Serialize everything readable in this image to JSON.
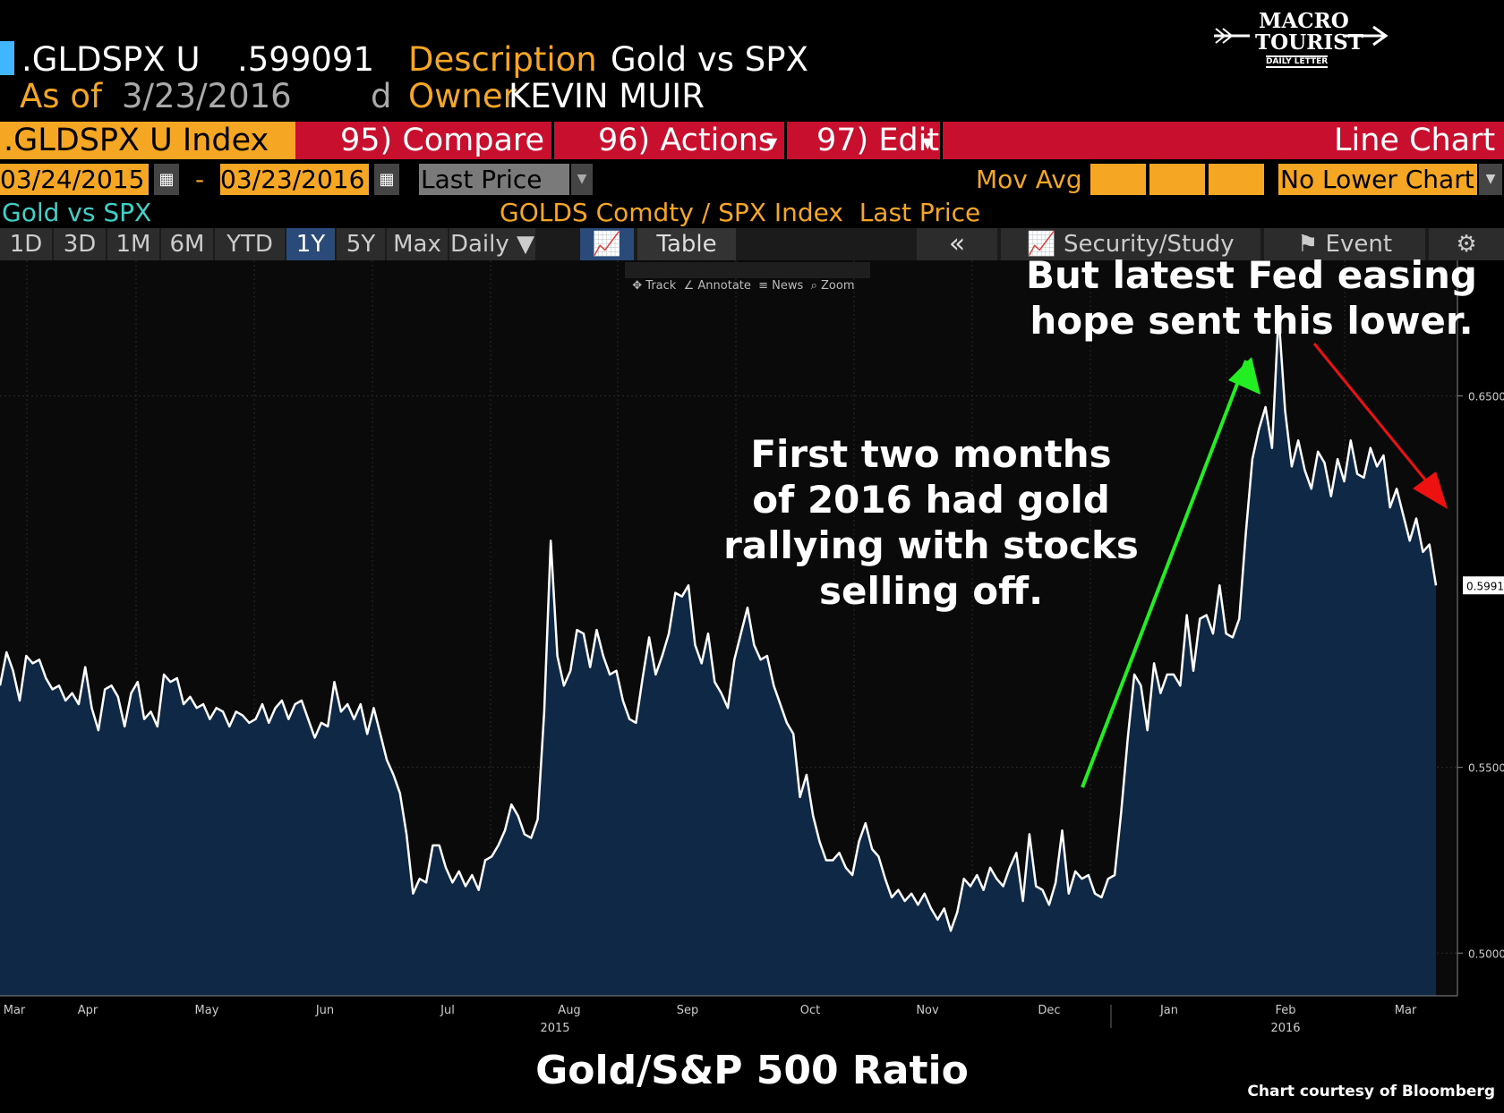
{
  "header": {
    "ticker": ".GLDSPX U",
    "value": ".599091",
    "desc_label": "Description",
    "desc_value": "Gold vs SPX",
    "asof_label": "As of",
    "asof_date": "3/23/2016",
    "d_label": "d",
    "owner_label": "Owner",
    "owner_value": "KEVIN MUIR"
  },
  "logo": {
    "line1": "MACRO",
    "line2": "TOURIST",
    "sub": "DAILY LETTER"
  },
  "toolbar": {
    "index_label": ".GLDSPX U Index",
    "compare": "95) Compare",
    "actions": "96) Actions",
    "edit": "97) Edit",
    "chart_type": "Line Chart"
  },
  "daterow": {
    "start": "03/24/2015",
    "dash": "-",
    "end": "03/23/2016",
    "field": "Last Price",
    "movavg": "Mov Avg",
    "lower": "No Lower Chart"
  },
  "titlerow": {
    "left": "Gold vs SPX",
    "center": "GOLDS Comdty / SPX Index  Last Price"
  },
  "tabs": [
    "1D",
    "3D",
    "1M",
    "6M",
    "YTD",
    "1Y",
    "5Y",
    "Max",
    "Daily"
  ],
  "tabs_active": "1Y",
  "table_tab": "Table",
  "collapse": "«",
  "security_study": "Security/Study",
  "event": "Event",
  "mini_tools": [
    "Track",
    "Annotate",
    "News",
    "Zoom"
  ],
  "annotations": {
    "top": "But latest Fed easing\nhope sent this lower.",
    "middle": "First two months\nof 2016 had gold\nrallying with stocks\nselling off."
  },
  "footer": {
    "title": "Gold/S&P 500 Ratio",
    "credit": "Chart courtesy of Bloomberg"
  },
  "colors": {
    "orange": "#f5a623",
    "red": "#c8102e",
    "fill": "#0f2845",
    "line": "#ffffff",
    "up_arrow": "#22ee22",
    "down_arrow": "#ee1111"
  },
  "chart_data": {
    "type": "area",
    "title": "Gold/S&P 500 Ratio",
    "subtitle": "GOLDS Comdty / SPX Index  Last Price",
    "xlabel": "",
    "ylabel": "",
    "ylim": [
      0.4885,
      0.6865
    ],
    "yticks": [
      "0.5000",
      "0.5500",
      "0.6500"
    ],
    "last_value_label": "0.5991",
    "x_ticks": [
      "Mar",
      "Apr",
      "May",
      "Jun",
      "Jul",
      "Aug",
      "Sep",
      "Oct",
      "Nov",
      "Dec",
      "Jan",
      "Feb",
      "Mar"
    ],
    "x_year_labels": [
      "2015",
      "2016"
    ],
    "series": [
      {
        "name": "Gold vs SPX",
        "values": [
          0.572,
          0.581,
          0.576,
          0.568,
          0.58,
          0.578,
          0.579,
          0.574,
          0.571,
          0.572,
          0.568,
          0.57,
          0.567,
          0.577,
          0.566,
          0.56,
          0.571,
          0.572,
          0.569,
          0.561,
          0.57,
          0.573,
          0.563,
          0.565,
          0.561,
          0.575,
          0.573,
          0.574,
          0.567,
          0.569,
          0.566,
          0.567,
          0.563,
          0.566,
          0.565,
          0.561,
          0.565,
          0.564,
          0.562,
          0.563,
          0.567,
          0.562,
          0.566,
          0.568,
          0.563,
          0.567,
          0.568,
          0.563,
          0.558,
          0.562,
          0.561,
          0.573,
          0.565,
          0.567,
          0.563,
          0.567,
          0.559,
          0.566,
          0.559,
          0.552,
          0.548,
          0.543,
          0.532,
          0.516,
          0.52,
          0.519,
          0.529,
          0.529,
          0.523,
          0.519,
          0.522,
          0.518,
          0.521,
          0.517,
          0.525,
          0.526,
          0.529,
          0.533,
          0.54,
          0.537,
          0.532,
          0.531,
          0.536,
          0.565,
          0.611,
          0.58,
          0.572,
          0.576,
          0.587,
          0.586,
          0.577,
          0.587,
          0.58,
          0.575,
          0.576,
          0.568,
          0.563,
          0.562,
          0.574,
          0.585,
          0.575,
          0.58,
          0.586,
          0.597,
          0.596,
          0.599,
          0.583,
          0.578,
          0.586,
          0.573,
          0.57,
          0.566,
          0.579,
          0.586,
          0.593,
          0.583,
          0.579,
          0.58,
          0.572,
          0.567,
          0.562,
          0.559,
          0.542,
          0.548,
          0.537,
          0.53,
          0.525,
          0.525,
          0.527,
          0.523,
          0.521,
          0.53,
          0.535,
          0.528,
          0.526,
          0.52,
          0.515,
          0.517,
          0.514,
          0.516,
          0.513,
          0.516,
          0.512,
          0.509,
          0.512,
          0.506,
          0.511,
          0.52,
          0.518,
          0.521,
          0.517,
          0.523,
          0.52,
          0.518,
          0.523,
          0.527,
          0.514,
          0.532,
          0.518,
          0.517,
          0.513,
          0.519,
          0.533,
          0.516,
          0.522,
          0.52,
          0.521,
          0.516,
          0.515,
          0.52,
          0.521,
          0.538,
          0.558,
          0.575,
          0.572,
          0.56,
          0.578,
          0.57,
          0.575,
          0.575,
          0.572,
          0.591,
          0.576,
          0.59,
          0.591,
          0.586,
          0.599,
          0.586,
          0.585,
          0.59,
          0.613,
          0.633,
          0.641,
          0.647,
          0.636,
          0.672,
          0.646,
          0.631,
          0.638,
          0.63,
          0.625,
          0.635,
          0.632,
          0.623,
          0.633,
          0.627,
          0.638,
          0.629,
          0.628,
          0.636,
          0.631,
          0.634,
          0.62,
          0.625,
          0.618,
          0.611,
          0.617,
          0.608,
          0.61,
          0.599
        ]
      }
    ]
  }
}
